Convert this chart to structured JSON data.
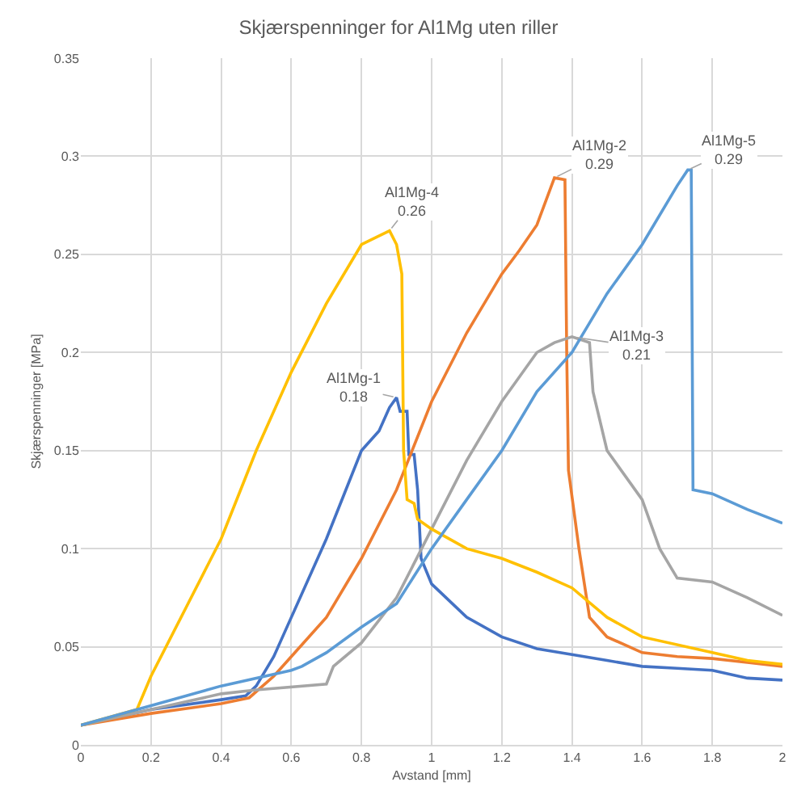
{
  "chart_data": {
    "type": "line",
    "title": "Skjærspenninger for Al1Mg uten riller",
    "xlabel": "Avstand [mm]",
    "ylabel": "Skjærspenninger [MPa]",
    "xlim": [
      0,
      2
    ],
    "ylim": [
      0,
      0.35
    ],
    "xticks": [
      0,
      0.2,
      0.4,
      0.6,
      0.8,
      1,
      1.2,
      1.4,
      1.6,
      1.8,
      2
    ],
    "yticks": [
      0,
      0.05,
      0.1,
      0.15,
      0.2,
      0.25,
      0.3,
      0.35
    ],
    "grid": true,
    "legend": false,
    "marker": "none",
    "line_style": "solid",
    "series": [
      {
        "name": "Al1Mg-1",
        "color": "#4472c4",
        "x": [
          0,
          0.2,
          0.4,
          0.47,
          0.5,
          0.55,
          0.6,
          0.7,
          0.8,
          0.85,
          0.88,
          0.9,
          0.91,
          0.93,
          0.935,
          0.95,
          0.96,
          0.97,
          1.0,
          1.1,
          1.2,
          1.3,
          1.4,
          1.5,
          1.6,
          1.7,
          1.8,
          1.9,
          2.0
        ],
        "values": [
          0.01,
          0.018,
          0.023,
          0.025,
          0.03,
          0.045,
          0.065,
          0.105,
          0.15,
          0.16,
          0.172,
          0.177,
          0.17,
          0.17,
          0.148,
          0.148,
          0.13,
          0.095,
          0.082,
          0.065,
          0.055,
          0.049,
          0.046,
          0.043,
          0.04,
          0.039,
          0.038,
          0.034,
          0.033
        ],
        "value_labels": [
          null,
          null,
          null,
          null,
          null,
          null,
          null,
          null,
          null,
          null,
          null,
          "0.18",
          null,
          null,
          null,
          null,
          null,
          null,
          null,
          null,
          null,
          null,
          null,
          null,
          null,
          null,
          null,
          null,
          null
        ]
      },
      {
        "name": "Al1Mg-2",
        "color": "#ed7d31",
        "x": [
          0,
          0.2,
          0.4,
          0.48,
          0.55,
          0.6,
          0.7,
          0.8,
          0.9,
          1.0,
          1.1,
          1.2,
          1.25,
          1.3,
          1.35,
          1.38,
          1.385,
          1.39,
          1.42,
          1.45,
          1.5,
          1.6,
          1.7,
          1.8,
          1.9,
          2.0
        ],
        "values": [
          0.01,
          0.016,
          0.021,
          0.024,
          0.035,
          0.045,
          0.065,
          0.095,
          0.13,
          0.175,
          0.21,
          0.24,
          0.252,
          0.265,
          0.289,
          0.288,
          0.2,
          0.14,
          0.1,
          0.065,
          0.055,
          0.047,
          0.045,
          0.044,
          0.042,
          0.04
        ],
        "value_labels": [
          null,
          null,
          null,
          null,
          null,
          null,
          null,
          null,
          null,
          null,
          null,
          null,
          null,
          null,
          "0.29",
          null,
          null,
          null,
          null,
          null,
          null,
          null,
          null,
          null,
          null,
          null
        ]
      },
      {
        "name": "Al1Mg-3",
        "color": "#a5a5a5",
        "x": [
          0,
          0.2,
          0.4,
          0.5,
          0.7,
          0.72,
          0.8,
          0.9,
          1.0,
          1.1,
          1.2,
          1.3,
          1.35,
          1.4,
          1.45,
          1.46,
          1.5,
          1.6,
          1.65,
          1.7,
          1.8,
          1.9,
          2.0
        ],
        "values": [
          0.01,
          0.018,
          0.026,
          0.028,
          0.031,
          0.04,
          0.052,
          0.075,
          0.11,
          0.145,
          0.175,
          0.2,
          0.205,
          0.208,
          0.205,
          0.18,
          0.15,
          0.125,
          0.1,
          0.085,
          0.083,
          0.075,
          0.066
        ],
        "value_labels": [
          null,
          null,
          null,
          null,
          null,
          null,
          null,
          null,
          null,
          null,
          null,
          null,
          null,
          "0.21",
          null,
          null,
          null,
          null,
          null,
          null,
          null,
          null,
          null
        ]
      },
      {
        "name": "Al1Mg-4",
        "color": "#ffc000",
        "x": [
          0,
          0.16,
          0.2,
          0.3,
          0.4,
          0.5,
          0.6,
          0.7,
          0.8,
          0.88,
          0.9,
          0.915,
          0.92,
          0.93,
          0.95,
          0.96,
          1.0,
          1.1,
          1.2,
          1.3,
          1.4,
          1.5,
          1.6,
          1.8,
          1.9,
          2.0
        ],
        "values": [
          0.01,
          0.018,
          0.035,
          0.07,
          0.105,
          0.15,
          0.19,
          0.225,
          0.255,
          0.262,
          0.255,
          0.24,
          0.15,
          0.125,
          0.123,
          0.115,
          0.11,
          0.1,
          0.095,
          0.088,
          0.08,
          0.065,
          0.055,
          0.047,
          0.043,
          0.041
        ],
        "value_labels": [
          null,
          null,
          null,
          null,
          null,
          null,
          null,
          null,
          null,
          "0.26",
          null,
          null,
          null,
          null,
          null,
          null,
          null,
          null,
          null,
          null,
          null,
          null,
          null,
          null,
          null,
          null
        ]
      },
      {
        "name": "Al1Mg-5",
        "color": "#5b9bd5",
        "x": [
          0,
          0.2,
          0.4,
          0.6,
          0.63,
          0.7,
          0.8,
          0.9,
          1.0,
          1.1,
          1.2,
          1.3,
          1.4,
          1.5,
          1.6,
          1.7,
          1.73,
          1.74,
          1.745,
          1.8,
          1.9,
          2.0
        ],
        "values": [
          0.01,
          0.02,
          0.03,
          0.038,
          0.04,
          0.047,
          0.06,
          0.072,
          0.1,
          0.125,
          0.15,
          0.18,
          0.2,
          0.23,
          0.255,
          0.285,
          0.293,
          0.293,
          0.13,
          0.128,
          0.12,
          0.113
        ],
        "value_labels": [
          null,
          null,
          null,
          null,
          null,
          null,
          null,
          null,
          null,
          null,
          null,
          null,
          null,
          null,
          null,
          null,
          "0.29",
          null,
          null,
          null,
          null,
          null
        ]
      }
    ]
  }
}
